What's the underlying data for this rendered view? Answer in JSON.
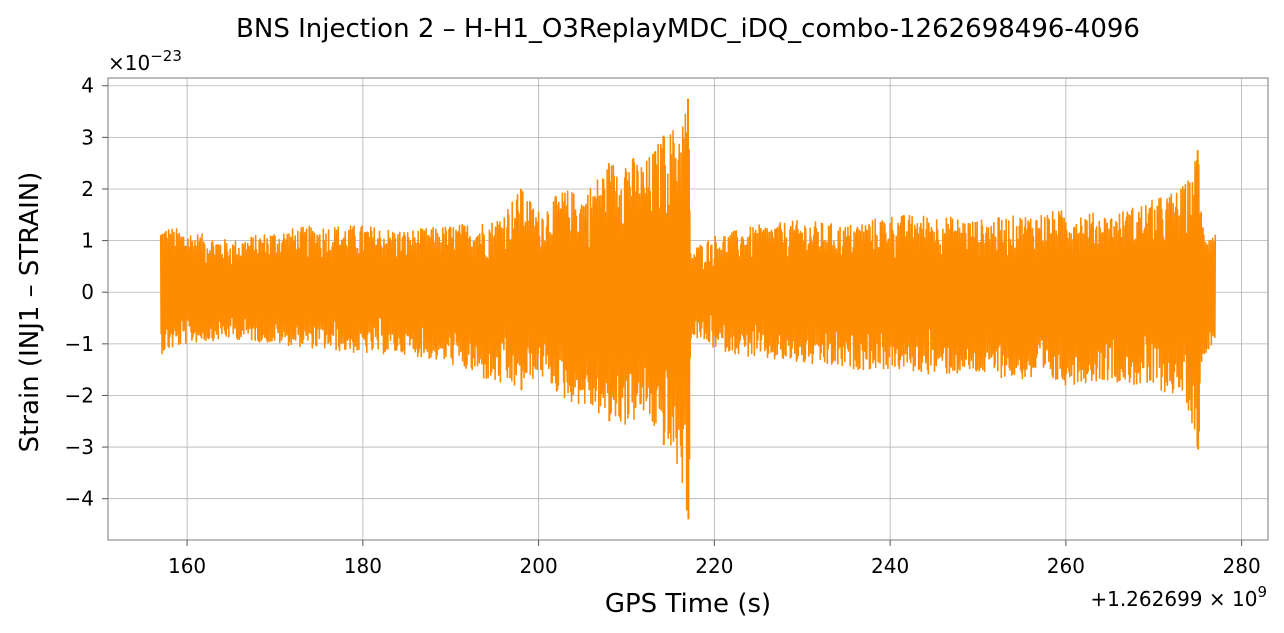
{
  "chart_data": {
    "type": "line",
    "title": "BNS Injection 2 – H-H1_O3ReplayMDC_iDQ_combo-1262698496-4096",
    "xlabel": "GPS Time (s)",
    "ylabel": "Strain (INJ1 – STRAIN)",
    "x_offset_label": "+1.262699 × 10^9",
    "y_scale_label": "×10^−23",
    "xlim": [
      151,
      283
    ],
    "ylim": [
      -4.8,
      4.15
    ],
    "x_ticks": [
      160,
      180,
      200,
      220,
      240,
      260,
      280
    ],
    "y_ticks": [
      -4,
      -3,
      -2,
      -1,
      0,
      1,
      2,
      3,
      4
    ],
    "x_tick_labels": [
      "160",
      "180",
      "200",
      "220",
      "240",
      "260",
      "280"
    ],
    "y_tick_labels": [
      "−4",
      "−3",
      "−2",
      "−1",
      "0",
      "1",
      "2",
      "3",
      "4"
    ],
    "grid": true,
    "series": [
      {
        "color": "#ff8c00",
        "x_range": [
          157.0,
          277.0
        ],
        "envelope": {
          "x": [
            157,
            160,
            165,
            170,
            175,
            180,
            185,
            190,
            195,
            198,
            200,
            203,
            205,
            208,
            210,
            212,
            214,
            216,
            217,
            217.3,
            218,
            220,
            225,
            230,
            235,
            240,
            245,
            250,
            255,
            260,
            265,
            270,
            273,
            274,
            275,
            275.5,
            277
          ],
          "upper": [
            1.3,
            1.2,
            1.0,
            1.2,
            1.3,
            1.3,
            1.2,
            1.3,
            1.4,
            2.0,
            1.6,
            2.0,
            1.9,
            2.5,
            2.7,
            2.5,
            3.0,
            3.3,
            3.75,
            0.8,
            0.9,
            1.1,
            1.3,
            1.4,
            1.3,
            1.5,
            1.5,
            1.4,
            1.5,
            1.6,
            1.5,
            1.8,
            2.0,
            2.2,
            2.75,
            1.4,
            1.2
          ],
          "lower": [
            -1.2,
            -1.0,
            -0.9,
            -1.0,
            -1.1,
            -1.2,
            -1.2,
            -1.4,
            -1.8,
            -1.9,
            -1.6,
            -2.1,
            -2.2,
            -2.5,
            -2.6,
            -2.4,
            -2.9,
            -3.5,
            -4.4,
            -0.9,
            -0.9,
            -1.1,
            -1.3,
            -1.4,
            -1.5,
            -1.5,
            -1.6,
            -1.6,
            -1.7,
            -1.8,
            -1.7,
            -1.9,
            -2.0,
            -2.3,
            -3.05,
            -1.3,
            -0.9
          ]
        }
      }
    ]
  }
}
